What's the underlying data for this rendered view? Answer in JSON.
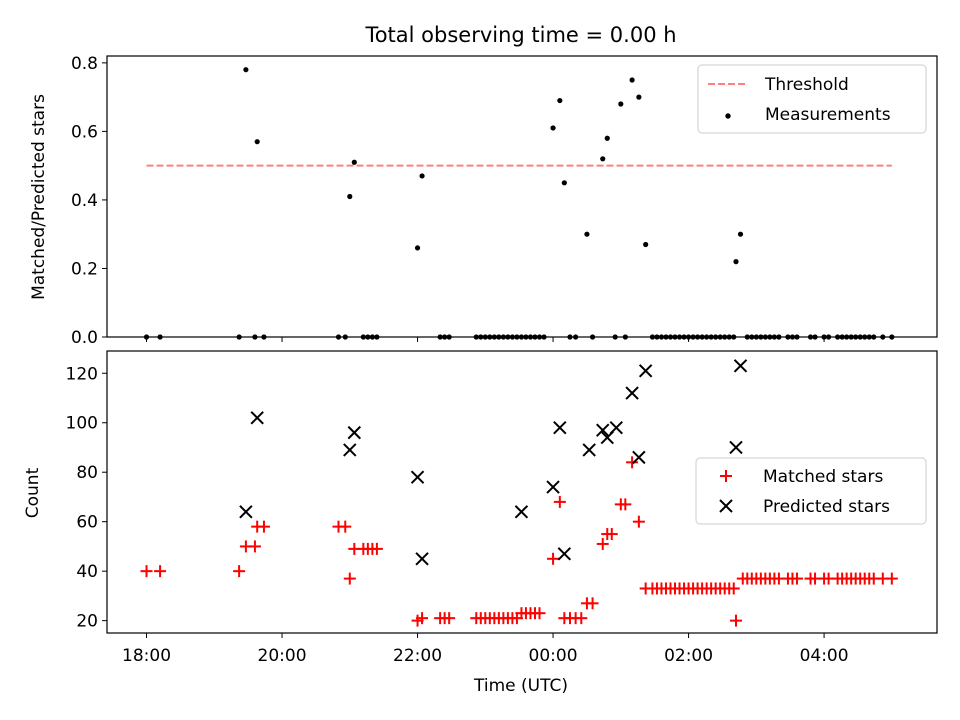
{
  "chart_data": [
    {
      "type": "scatter",
      "title": "Total observing time = 0.00 h",
      "ylabel": "Matched/Predicted stars",
      "xlim": [
        "17:25",
        "05:40"
      ],
      "ylim": [
        0,
        0.82
      ],
      "yticks": [
        0.0,
        0.2,
        0.4,
        0.6,
        0.8
      ],
      "yticklabels": [
        "0.0",
        "0.2",
        "0.4",
        "0.6",
        "0.8"
      ],
      "threshold": {
        "name": "Threshold",
        "y": 0.5,
        "x_range": [
          "18:00",
          "05:00"
        ],
        "color": "#ff7f7f",
        "style": "dashed"
      },
      "legend": {
        "position": "upper right",
        "entries": [
          "Threshold",
          "Measurements"
        ]
      },
      "series": [
        {
          "name": "Measurements",
          "color": "#000000",
          "marker": "dot",
          "points": [
            [
              "18:00",
              0
            ],
            [
              "18:12",
              0
            ],
            [
              "19:22",
              0
            ],
            [
              "19:28",
              0.78
            ],
            [
              "19:36",
              0
            ],
            [
              "19:38",
              0.57
            ],
            [
              "19:44",
              0
            ],
            [
              "20:50",
              0
            ],
            [
              "20:56",
              0
            ],
            [
              "21:00",
              0.41
            ],
            [
              "21:04",
              0.51
            ],
            [
              "21:12",
              0
            ],
            [
              "21:16",
              0
            ],
            [
              "21:20",
              0
            ],
            [
              "21:24",
              0
            ],
            [
              "22:00",
              0.26
            ],
            [
              "22:04",
              0.47
            ],
            [
              "22:20",
              0
            ],
            [
              "22:24",
              0
            ],
            [
              "22:28",
              0
            ],
            [
              "22:52",
              0
            ],
            [
              "22:56",
              0
            ],
            [
              "23:00",
              0
            ],
            [
              "23:04",
              0
            ],
            [
              "23:08",
              0
            ],
            [
              "23:12",
              0
            ],
            [
              "23:16",
              0
            ],
            [
              "23:20",
              0
            ],
            [
              "23:24",
              0
            ],
            [
              "23:28",
              0
            ],
            [
              "23:32",
              0
            ],
            [
              "23:36",
              0
            ],
            [
              "23:40",
              0
            ],
            [
              "23:44",
              0
            ],
            [
              "23:48",
              0
            ],
            [
              "23:52",
              0
            ],
            [
              "00:00",
              0.61
            ],
            [
              "00:06",
              0.69
            ],
            [
              "00:10",
              0.45
            ],
            [
              "00:15",
              0
            ],
            [
              "00:20",
              0
            ],
            [
              "00:30",
              0.3
            ],
            [
              "00:35",
              0
            ],
            [
              "00:44",
              0.52
            ],
            [
              "00:48",
              0.58
            ],
            [
              "00:55",
              0
            ],
            [
              "01:00",
              0.68
            ],
            [
              "01:04",
              0
            ],
            [
              "01:10",
              0.75
            ],
            [
              "01:16",
              0.7
            ],
            [
              "01:22",
              0.27
            ],
            [
              "01:28",
              0
            ],
            [
              "01:32",
              0
            ],
            [
              "01:36",
              0
            ],
            [
              "01:40",
              0
            ],
            [
              "01:44",
              0
            ],
            [
              "01:48",
              0
            ],
            [
              "01:52",
              0
            ],
            [
              "01:56",
              0
            ],
            [
              "02:00",
              0
            ],
            [
              "02:04",
              0
            ],
            [
              "02:08",
              0
            ],
            [
              "02:12",
              0
            ],
            [
              "02:16",
              0
            ],
            [
              "02:20",
              0
            ],
            [
              "02:24",
              0
            ],
            [
              "02:28",
              0
            ],
            [
              "02:32",
              0
            ],
            [
              "02:36",
              0
            ],
            [
              "02:40",
              0
            ],
            [
              "02:42",
              0.22
            ],
            [
              "02:46",
              0.3
            ],
            [
              "02:52",
              0
            ],
            [
              "02:56",
              0
            ],
            [
              "03:00",
              0
            ],
            [
              "03:04",
              0
            ],
            [
              "03:08",
              0
            ],
            [
              "03:12",
              0
            ],
            [
              "03:16",
              0
            ],
            [
              "03:20",
              0
            ],
            [
              "03:28",
              0
            ],
            [
              "03:32",
              0
            ],
            [
              "03:36",
              0
            ],
            [
              "03:48",
              0
            ],
            [
              "03:52",
              0
            ],
            [
              "04:00",
              0
            ],
            [
              "04:04",
              0
            ],
            [
              "04:12",
              0
            ],
            [
              "04:16",
              0
            ],
            [
              "04:20",
              0
            ],
            [
              "04:24",
              0
            ],
            [
              "04:28",
              0
            ],
            [
              "04:32",
              0
            ],
            [
              "04:36",
              0
            ],
            [
              "04:40",
              0
            ],
            [
              "04:44",
              0
            ],
            [
              "04:52",
              0
            ],
            [
              "05:00",
              0
            ]
          ]
        }
      ]
    },
    {
      "type": "scatter",
      "xlabel": "Time (UTC)",
      "ylabel": "Count",
      "xlim": [
        "17:25",
        "05:40"
      ],
      "ylim": [
        15,
        129
      ],
      "xticks": [
        "18:00",
        "20:00",
        "22:00",
        "00:00",
        "02:00",
        "04:00"
      ],
      "yticks": [
        20,
        40,
        60,
        80,
        100,
        120
      ],
      "legend": {
        "position": "center right",
        "entries": [
          "Matched stars",
          "Predicted stars"
        ]
      },
      "series": [
        {
          "name": "Matched stars",
          "color": "#ff0000",
          "marker": "plus",
          "points": [
            [
              "18:00",
              40
            ],
            [
              "18:12",
              40
            ],
            [
              "19:22",
              40
            ],
            [
              "19:28",
              50
            ],
            [
              "19:36",
              50
            ],
            [
              "19:38",
              58
            ],
            [
              "19:44",
              58
            ],
            [
              "20:50",
              58
            ],
            [
              "20:56",
              58
            ],
            [
              "21:00",
              37
            ],
            [
              "21:04",
              49
            ],
            [
              "21:12",
              49
            ],
            [
              "21:16",
              49
            ],
            [
              "21:20",
              49
            ],
            [
              "21:24",
              49
            ],
            [
              "22:00",
              20
            ],
            [
              "22:04",
              21
            ],
            [
              "22:20",
              21
            ],
            [
              "22:24",
              21
            ],
            [
              "22:28",
              21
            ],
            [
              "22:52",
              21
            ],
            [
              "22:56",
              21
            ],
            [
              "23:00",
              21
            ],
            [
              "23:04",
              21
            ],
            [
              "23:08",
              21
            ],
            [
              "23:12",
              21
            ],
            [
              "23:16",
              21
            ],
            [
              "23:20",
              21
            ],
            [
              "23:24",
              21
            ],
            [
              "23:28",
              21
            ],
            [
              "23:32",
              23
            ],
            [
              "23:36",
              23
            ],
            [
              "23:40",
              23
            ],
            [
              "23:44",
              23
            ],
            [
              "23:48",
              23
            ],
            [
              "00:00",
              45
            ],
            [
              "00:06",
              68
            ],
            [
              "00:10",
              21
            ],
            [
              "00:15",
              21
            ],
            [
              "00:20",
              21
            ],
            [
              "00:25",
              21
            ],
            [
              "00:30",
              27
            ],
            [
              "00:35",
              27
            ],
            [
              "00:44",
              51
            ],
            [
              "00:48",
              55
            ],
            [
              "00:52",
              55
            ],
            [
              "01:00",
              67
            ],
            [
              "01:04",
              67
            ],
            [
              "01:10",
              84
            ],
            [
              "01:16",
              60
            ],
            [
              "01:22",
              33
            ],
            [
              "01:28",
              33
            ],
            [
              "01:32",
              33
            ],
            [
              "01:36",
              33
            ],
            [
              "01:40",
              33
            ],
            [
              "01:44",
              33
            ],
            [
              "01:48",
              33
            ],
            [
              "01:52",
              33
            ],
            [
              "01:56",
              33
            ],
            [
              "02:00",
              33
            ],
            [
              "02:04",
              33
            ],
            [
              "02:08",
              33
            ],
            [
              "02:12",
              33
            ],
            [
              "02:16",
              33
            ],
            [
              "02:20",
              33
            ],
            [
              "02:24",
              33
            ],
            [
              "02:28",
              33
            ],
            [
              "02:32",
              33
            ],
            [
              "02:36",
              33
            ],
            [
              "02:40",
              33
            ],
            [
              "02:42",
              20
            ],
            [
              "02:48",
              37
            ],
            [
              "02:52",
              37
            ],
            [
              "02:56",
              37
            ],
            [
              "03:00",
              37
            ],
            [
              "03:04",
              37
            ],
            [
              "03:08",
              37
            ],
            [
              "03:12",
              37
            ],
            [
              "03:16",
              37
            ],
            [
              "03:20",
              37
            ],
            [
              "03:28",
              37
            ],
            [
              "03:32",
              37
            ],
            [
              "03:36",
              37
            ],
            [
              "03:48",
              37
            ],
            [
              "03:52",
              37
            ],
            [
              "04:00",
              37
            ],
            [
              "04:04",
              37
            ],
            [
              "04:12",
              37
            ],
            [
              "04:16",
              37
            ],
            [
              "04:20",
              37
            ],
            [
              "04:24",
              37
            ],
            [
              "04:28",
              37
            ],
            [
              "04:32",
              37
            ],
            [
              "04:36",
              37
            ],
            [
              "04:40",
              37
            ],
            [
              "04:44",
              37
            ],
            [
              "04:52",
              37
            ],
            [
              "05:00",
              37
            ]
          ]
        },
        {
          "name": "Predicted stars",
          "color": "#000000",
          "marker": "x",
          "points": [
            [
              "19:28",
              64
            ],
            [
              "19:38",
              102
            ],
            [
              "21:00",
              89
            ],
            [
              "21:04",
              96
            ],
            [
              "22:00",
              78
            ],
            [
              "22:04",
              45
            ],
            [
              "23:32",
              64
            ],
            [
              "00:00",
              74
            ],
            [
              "00:06",
              98
            ],
            [
              "00:10",
              47
            ],
            [
              "00:32",
              89
            ],
            [
              "00:44",
              97
            ],
            [
              "00:48",
              94
            ],
            [
              "00:56",
              98
            ],
            [
              "01:10",
              112
            ],
            [
              "01:16",
              86
            ],
            [
              "01:22",
              121
            ],
            [
              "02:42",
              90
            ],
            [
              "02:46",
              123
            ]
          ]
        }
      ]
    }
  ]
}
